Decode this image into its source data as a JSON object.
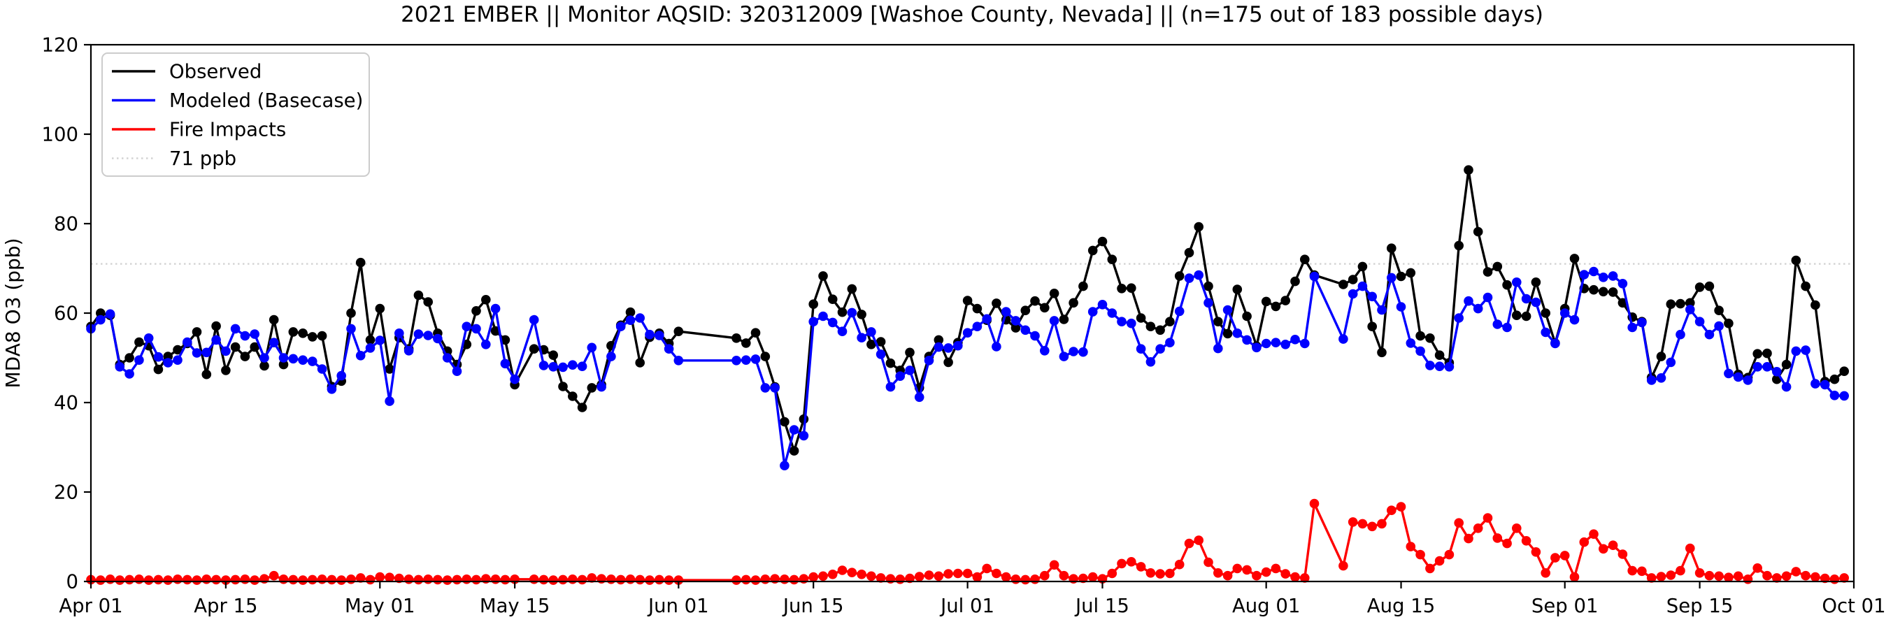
{
  "chart_data": {
    "type": "line",
    "title": "2021 EMBER || Monitor AQSID: 320312009 [Washoe County, Nevada] || (n=175 out of 183 possible days)",
    "xlabel": "",
    "ylabel": "MDA8 O3 (ppb)",
    "ylim": [
      0,
      120
    ],
    "y_ticks": [
      0,
      20,
      40,
      60,
      80,
      100,
      120
    ],
    "x_range_days": 183,
    "x_ticks": [
      {
        "label": "Apr 01",
        "day": 0
      },
      {
        "label": "Apr 15",
        "day": 14
      },
      {
        "label": "May 01",
        "day": 30
      },
      {
        "label": "May 15",
        "day": 44
      },
      {
        "label": "Jun 01",
        "day": 61
      },
      {
        "label": "Jun 15",
        "day": 75
      },
      {
        "label": "Jul 01",
        "day": 91
      },
      {
        "label": "Jul 15",
        "day": 105
      },
      {
        "label": "Aug 01",
        "day": 122
      },
      {
        "label": "Aug 15",
        "day": 136
      },
      {
        "label": "Sep 01",
        "day": 153
      },
      {
        "label": "Sep 15",
        "day": 167
      },
      {
        "label": "Oct 01",
        "day": 183
      }
    ],
    "grid": false,
    "legend_position": "upper-left",
    "ref_line": {
      "value": 71,
      "label": "71 ppb",
      "color": "#d3d3d3",
      "style": "dotted"
    },
    "series": [
      {
        "name": "Observed",
        "color": "#000000",
        "values": [
          57,
          60,
          59.5,
          48.5,
          50,
          53.5,
          52.7,
          47.4,
          50.3,
          51.8,
          53.2,
          55.8,
          46.3,
          57.1,
          47.2,
          52.4,
          50.3,
          52.4,
          48.2,
          58.5,
          48.5,
          55.8,
          55.5,
          54.7,
          54.9,
          43.6,
          44.8,
          60,
          71.3,
          54,
          61,
          47.5,
          54.5,
          52,
          64,
          62.5,
          55.5,
          51.5,
          48.5,
          53,
          60.5,
          63,
          56,
          54,
          44,
          null,
          52,
          51.8,
          50.6,
          43.6,
          41.4,
          38.9,
          43.3,
          44,
          52.7,
          57.3,
          60.2,
          48.9,
          54.6,
          55.5,
          53.2,
          55.9,
          null,
          null,
          null,
          null,
          null,
          54.4,
          53.3,
          55.6,
          50.3,
          43.5,
          35.7,
          29.2,
          36.3,
          62,
          68.3,
          63.1,
          60.2,
          65.4,
          59.7,
          53,
          53.6,
          48.8,
          47.2,
          51.2,
          43.3,
          50.3,
          54,
          49,
          53.4,
          62.8,
          61,
          58.4,
          62.2,
          58.5,
          56.7,
          60.6,
          62.7,
          61.2,
          64.4,
          58.6,
          62.3,
          66,
          74,
          76,
          72,
          65.5,
          65.6,
          58.9,
          57,
          56.2,
          58.1,
          68.3,
          73.5,
          79.3,
          66,
          58.1,
          55.4,
          65.3,
          59.3,
          52.6,
          62.6,
          61.5,
          62.8,
          67.1,
          72,
          68.5,
          null,
          null,
          66.4,
          67.5,
          70.4,
          57,
          51.2,
          74.5,
          68.2,
          69,
          54.9,
          54.4,
          50.6,
          48.9,
          75.1,
          92,
          78.2,
          69.2,
          70.4,
          66.3,
          59.5,
          59.3,
          66.9,
          60,
          53.3,
          61,
          72.2,
          65.5,
          65.2,
          64.8,
          64.7,
          62.3,
          59.1,
          58.1,
          45.6,
          50.3,
          62,
          62.1,
          62.3,
          65.8,
          66,
          60.6,
          57.7,
          46.3,
          45.6,
          50.9,
          51,
          45.2,
          48.5,
          71.8,
          66,
          61.8,
          44.7,
          45.2,
          47
        ]
      },
      {
        "name": "Modeled (Basecase)",
        "color": "#0000ff",
        "values": [
          56.5,
          58.5,
          59.8,
          48,
          46.4,
          49.5,
          54.4,
          50.2,
          48.9,
          49.5,
          53.5,
          51.1,
          51.2,
          54,
          51.5,
          56.5,
          54.9,
          55.3,
          50,
          53.4,
          50,
          49.8,
          49.5,
          49.2,
          47.5,
          43,
          46,
          56.5,
          50.5,
          52.2,
          53.9,
          40.3,
          55.5,
          51.6,
          55.3,
          55,
          54.3,
          50,
          47,
          57,
          56.5,
          53,
          61,
          48.7,
          45.2,
          null,
          58.5,
          48.3,
          48,
          47.9,
          48.4,
          48.1,
          52.3,
          43.5,
          50.3,
          57,
          58.4,
          58.9,
          55.2,
          55,
          52,
          49.4,
          null,
          null,
          null,
          null,
          null,
          49.4,
          49.5,
          49.7,
          43.3,
          43.3,
          25.9,
          33.9,
          32.6,
          58.1,
          59.3,
          57.9,
          55.9,
          60.1,
          54.5,
          55.8,
          50.8,
          43.5,
          45.9,
          47.2,
          41.2,
          49.4,
          52.4,
          52.2,
          52.7,
          55.6,
          57,
          58.7,
          52.5,
          60.3,
          58.3,
          56.2,
          54.9,
          51.6,
          58.3,
          50.3,
          51.4,
          51.3,
          60.3,
          61.9,
          60,
          58.1,
          57.7,
          52,
          49.1,
          52,
          53.4,
          60.4,
          67.8,
          68.5,
          62.3,
          52.1,
          60.7,
          55.5,
          54,
          52.3,
          53.2,
          53.4,
          53,
          54.1,
          53.2,
          68.2,
          null,
          null,
          54.2,
          64.3,
          66,
          63.7,
          60.7,
          67.9,
          61.4,
          53.3,
          51.5,
          48.3,
          48.1,
          48,
          58.9,
          62.7,
          61,
          63.5,
          57.5,
          56.8,
          66.9,
          63.2,
          62.4,
          55.7,
          53.2,
          60,
          58.5,
          68.6,
          69.3,
          68,
          68.3,
          66.6,
          56.8,
          57.9,
          45,
          45.5,
          49,
          55.2,
          60.8,
          58.1,
          55.2,
          57.1,
          46.5,
          45.7,
          45,
          48,
          48,
          46.9,
          43.5,
          51.5,
          51.7,
          44.2,
          44,
          41.6,
          41.5
        ]
      },
      {
        "name": "Fire Impacts",
        "color": "#ff0000",
        "values": [
          0.4,
          0.3,
          0.5,
          0.3,
          0.4,
          0.5,
          0.3,
          0.4,
          0.3,
          0.5,
          0.4,
          0.3,
          0.5,
          0.4,
          0.3,
          0.4,
          0.5,
          0.3,
          0.6,
          1.3,
          0.5,
          0.4,
          0.3,
          0.4,
          0.5,
          0.4,
          0.3,
          0.5,
          0.8,
          0.4,
          1.0,
          0.9,
          0.7,
          0.5,
          0.4,
          0.5,
          0.4,
          0.3,
          0.4,
          0.5,
          0.4,
          0.6,
          0.5,
          0.4,
          0.5,
          null,
          0.5,
          0.4,
          0.3,
          0.4,
          0.5,
          0.4,
          0.8,
          0.6,
          0.5,
          0.4,
          0.5,
          0.4,
          0.3,
          0.4,
          0.3,
          0.3,
          null,
          null,
          null,
          null,
          null,
          0.3,
          0.4,
          0.3,
          0.5,
          0.6,
          0.5,
          0.4,
          0.6,
          1.0,
          1.2,
          1.6,
          2.5,
          2.0,
          1.6,
          1.2,
          0.8,
          0.6,
          0.5,
          0.7,
          1.1,
          1.4,
          1.2,
          1.7,
          1.8,
          1.8,
          1.0,
          2.9,
          1.8,
          1.0,
          0.5,
          0.4,
          0.5,
          1.3,
          3.7,
          1.3,
          0.6,
          0.7,
          1.0,
          0.6,
          1.8,
          4.0,
          4.4,
          3.3,
          1.9,
          1.7,
          1.8,
          3.8,
          8.5,
          9.2,
          4.3,
          1.9,
          1.3,
          2.9,
          2.6,
          1.3,
          2.1,
          2.9,
          1.7,
          1.0,
          0.8,
          17.4,
          null,
          null,
          3.5,
          13.3,
          12.9,
          12.3,
          12.9,
          15.9,
          16.7,
          7.8,
          6.0,
          2.9,
          4.6,
          6.0,
          13.1,
          9.6,
          11.9,
          14.2,
          9.7,
          8.5,
          11.9,
          9.1,
          6.6,
          1.9,
          5.3,
          5.8,
          1.0,
          8.8,
          10.6,
          7.3,
          8.1,
          6.1,
          2.4,
          2.3,
          0.8,
          1.1,
          1.4,
          2.4,
          7.4,
          1.9,
          1.3,
          1.2,
          0.9,
          1.2,
          0.5,
          3.0,
          1.3,
          0.8,
          1.2,
          2.2,
          1.3,
          1.0,
          0.7,
          0.5,
          0.8
        ]
      }
    ]
  },
  "legend": {
    "items": [
      {
        "label": "Observed",
        "color": "#000000",
        "style": "solid"
      },
      {
        "label": "Modeled (Basecase)",
        "color": "#0000ff",
        "style": "solid"
      },
      {
        "label": "Fire Impacts",
        "color": "#ff0000",
        "style": "solid"
      },
      {
        "label": "71 ppb",
        "color": "#d3d3d3",
        "style": "dotted"
      }
    ]
  },
  "colors": {
    "background": "#ffffff",
    "axis": "#000000",
    "legend_border": "#cccccc"
  }
}
